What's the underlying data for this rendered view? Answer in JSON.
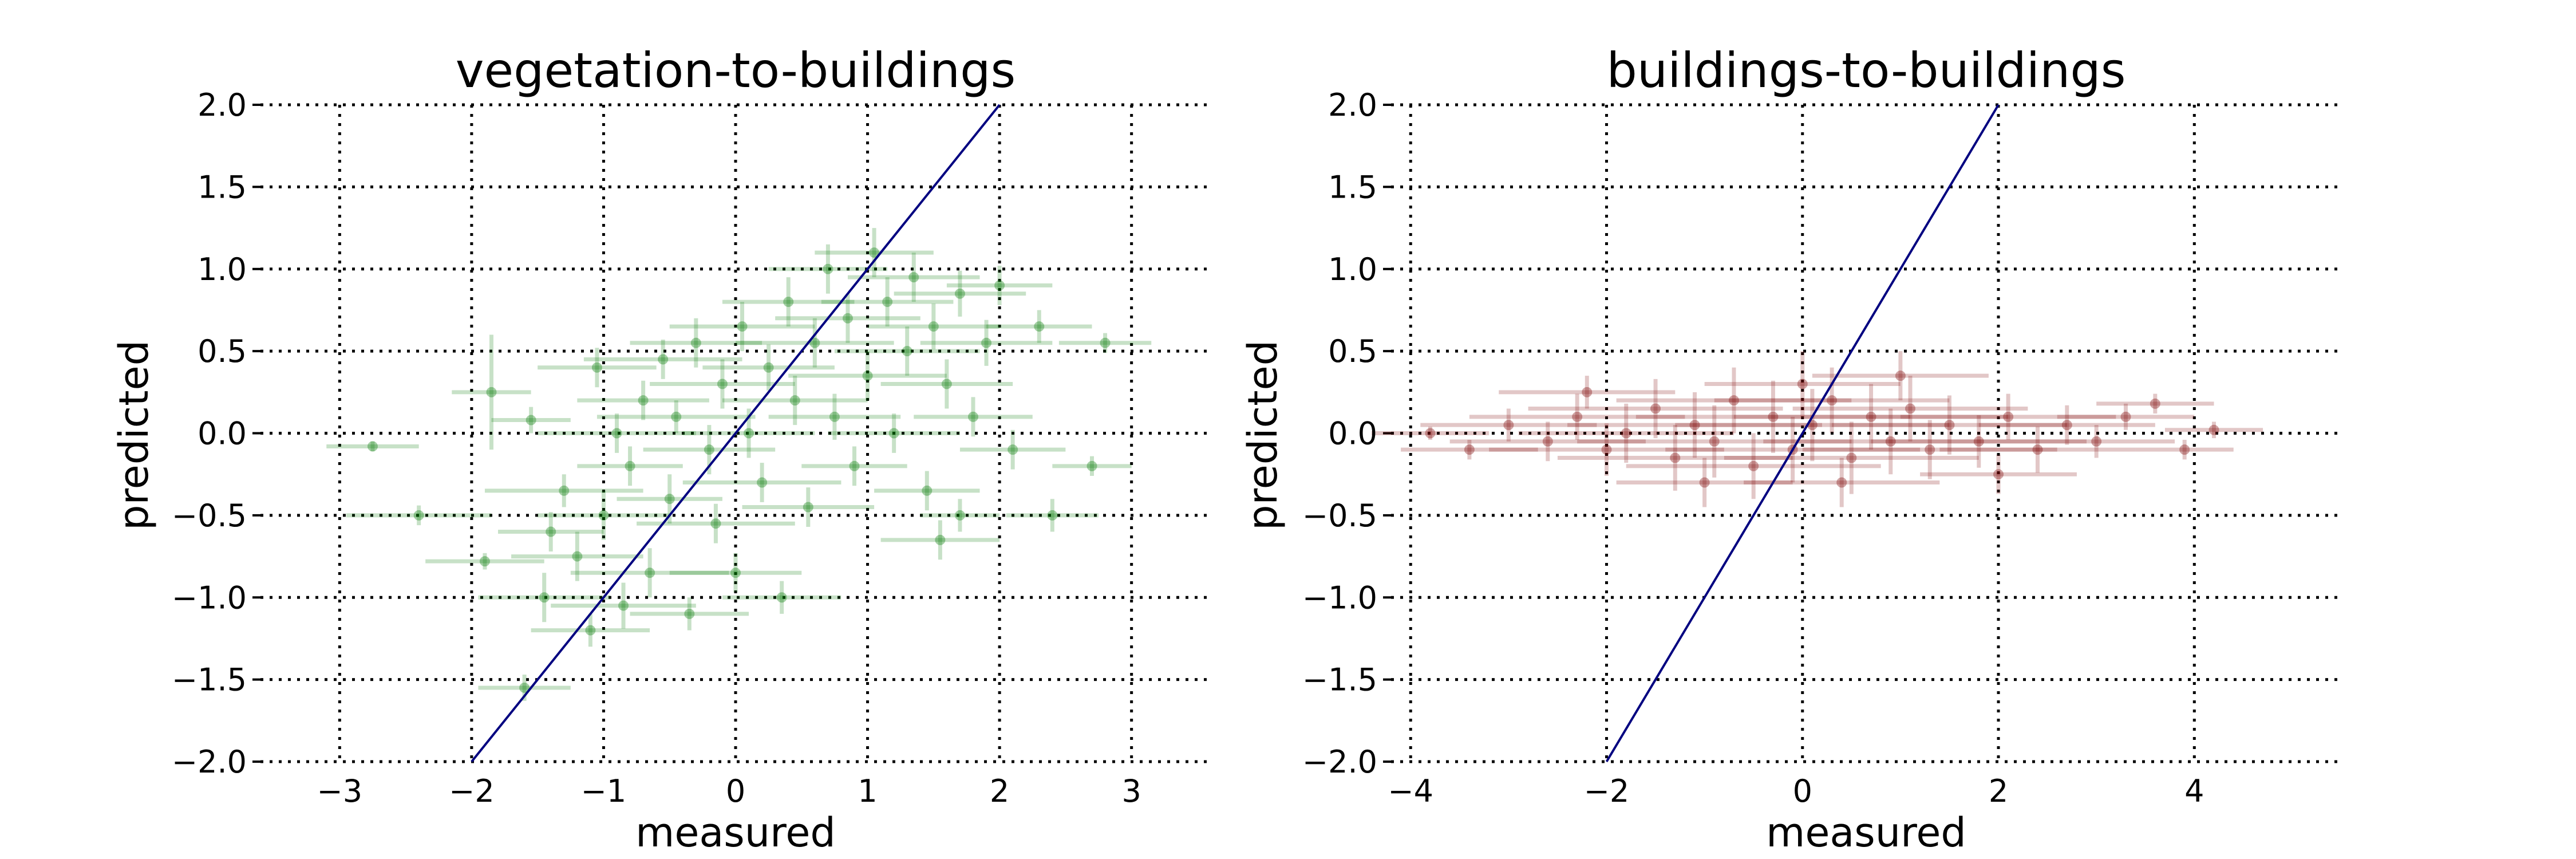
{
  "chart_data": [
    {
      "type": "scatter",
      "title": "vegetation-to-buildings",
      "xlabel": "measured",
      "ylabel": "predicted",
      "xlim": [
        -3.6,
        3.6
      ],
      "ylim": [
        -2.0,
        2.0
      ],
      "xticks": [
        -3,
        -2,
        -1,
        0,
        1,
        2,
        3
      ],
      "yticks": [
        -2.0,
        -1.5,
        -1.0,
        -0.5,
        0.0,
        0.5,
        1.0,
        1.5,
        2.0
      ],
      "xtick_labels": [
        "−3",
        "−2",
        "−1",
        "0",
        "1",
        "2",
        "3"
      ],
      "ytick_labels": [
        "−2.0",
        "−1.5",
        "−1.0",
        "−0.5",
        "0.0",
        "0.5",
        "1.0",
        "1.5",
        "2.0"
      ],
      "grid": true,
      "point_color": "#007700",
      "reference_line": {
        "x": [
          -2,
          2
        ],
        "y": [
          -2,
          2
        ],
        "color": "#000080"
      },
      "points": [
        [
          -2.75,
          -0.08,
          0.35,
          0.03
        ],
        [
          -2.4,
          -0.5,
          0.55,
          0.06
        ],
        [
          -1.9,
          -0.78,
          0.45,
          0.05
        ],
        [
          -1.85,
          0.25,
          0.3,
          0.35
        ],
        [
          -1.6,
          -1.55,
          0.35,
          0.08
        ],
        [
          -1.55,
          0.08,
          0.3,
          0.08
        ],
        [
          -1.45,
          -1.0,
          0.5,
          0.15
        ],
        [
          -1.4,
          -0.6,
          0.4,
          0.12
        ],
        [
          -1.3,
          -0.35,
          0.6,
          0.1
        ],
        [
          -1.2,
          -0.75,
          0.5,
          0.15
        ],
        [
          -1.1,
          -1.2,
          0.45,
          0.1
        ],
        [
          -1.05,
          0.4,
          0.45,
          0.12
        ],
        [
          -1.0,
          -0.5,
          0.5,
          0.15
        ],
        [
          -0.9,
          0.0,
          0.6,
          0.12
        ],
        [
          -0.85,
          -1.05,
          0.55,
          0.14
        ],
        [
          -0.8,
          -0.2,
          0.4,
          0.12
        ],
        [
          -0.7,
          0.2,
          0.5,
          0.12
        ],
        [
          -0.65,
          -0.85,
          0.6,
          0.15
        ],
        [
          -0.55,
          0.45,
          0.6,
          0.12
        ],
        [
          -0.5,
          -0.4,
          0.4,
          0.15
        ],
        [
          -0.45,
          0.1,
          0.6,
          0.1
        ],
        [
          -0.35,
          -1.1,
          0.45,
          0.1
        ],
        [
          -0.3,
          0.55,
          0.5,
          0.15
        ],
        [
          -0.2,
          -0.1,
          0.5,
          0.15
        ],
        [
          -0.15,
          -0.55,
          0.6,
          0.12
        ],
        [
          -0.1,
          0.3,
          0.55,
          0.15
        ],
        [
          0.0,
          -0.85,
          0.5,
          0.12
        ],
        [
          0.05,
          0.65,
          0.55,
          0.15
        ],
        [
          0.1,
          0.0,
          0.5,
          0.15
        ],
        [
          0.2,
          -0.3,
          0.6,
          0.12
        ],
        [
          0.25,
          0.4,
          0.5,
          0.14
        ],
        [
          0.35,
          -1.0,
          0.45,
          0.1
        ],
        [
          0.4,
          0.8,
          0.5,
          0.15
        ],
        [
          0.45,
          0.2,
          0.55,
          0.15
        ],
        [
          0.55,
          -0.45,
          0.5,
          0.12
        ],
        [
          0.6,
          0.55,
          0.6,
          0.15
        ],
        [
          0.7,
          1.0,
          0.45,
          0.15
        ],
        [
          0.75,
          0.1,
          0.5,
          0.14
        ],
        [
          0.85,
          0.7,
          0.55,
          0.15
        ],
        [
          0.9,
          -0.2,
          0.4,
          0.12
        ],
        [
          1.0,
          0.35,
          0.6,
          0.15
        ],
        [
          1.05,
          1.1,
          0.45,
          0.15
        ],
        [
          1.15,
          0.8,
          0.5,
          0.15
        ],
        [
          1.2,
          0.0,
          0.5,
          0.12
        ],
        [
          1.3,
          0.5,
          0.55,
          0.15
        ],
        [
          1.35,
          0.95,
          0.5,
          0.15
        ],
        [
          1.45,
          -0.35,
          0.4,
          0.12
        ],
        [
          1.5,
          0.65,
          0.5,
          0.14
        ],
        [
          1.55,
          -0.65,
          0.45,
          0.12
        ],
        [
          1.6,
          0.3,
          0.5,
          0.15
        ],
        [
          1.7,
          0.85,
          0.5,
          0.14
        ],
        [
          1.8,
          0.1,
          0.45,
          0.12
        ],
        [
          1.9,
          0.55,
          0.5,
          0.14
        ],
        [
          2.0,
          0.9,
          0.4,
          0.12
        ],
        [
          2.1,
          -0.1,
          0.4,
          0.12
        ],
        [
          2.3,
          0.65,
          0.4,
          0.1
        ],
        [
          2.4,
          -0.5,
          0.35,
          0.1
        ],
        [
          2.7,
          -0.2,
          0.3,
          0.06
        ],
        [
          2.8,
          0.55,
          0.35,
          0.06
        ],
        [
          1.7,
          -0.5,
          0.3,
          0.1
        ]
      ]
    },
    {
      "type": "scatter",
      "title": "buildings-to-buildings",
      "xlabel": "measured",
      "ylabel": "predicted",
      "xlim": [
        -4.2,
        5.5
      ],
      "ylim": [
        -2.0,
        2.0
      ],
      "xticks": [
        -4,
        -2,
        0,
        2,
        4
      ],
      "yticks": [
        -2.0,
        -1.5,
        -1.0,
        -0.5,
        0.0,
        0.5,
        1.0,
        1.5,
        2.0
      ],
      "xtick_labels": [
        "−4",
        "−2",
        "0",
        "2",
        "4"
      ],
      "ytick_labels": [
        "−2.0",
        "−1.5",
        "−1.0",
        "−0.5",
        "0.0",
        "0.5",
        "1.0",
        "1.5",
        "2.0"
      ],
      "grid": true,
      "point_color": "#7a0000",
      "reference_line": {
        "x": [
          -2,
          2
        ],
        "y": [
          -2,
          2
        ],
        "color": "#000080"
      },
      "points": [
        [
          -3.8,
          0.0,
          0.6,
          0.04
        ],
        [
          -3.4,
          -0.1,
          0.7,
          0.06
        ],
        [
          -3.0,
          0.05,
          0.9,
          0.1
        ],
        [
          -2.6,
          -0.05,
          1.0,
          0.12
        ],
        [
          -2.3,
          0.1,
          1.1,
          0.14
        ],
        [
          -2.0,
          -0.1,
          1.2,
          0.16
        ],
        [
          -1.8,
          0.0,
          1.1,
          0.18
        ],
        [
          -1.5,
          0.15,
          1.3,
          0.18
        ],
        [
          -1.3,
          -0.15,
          1.2,
          0.2
        ],
        [
          -1.1,
          0.05,
          1.3,
          0.2
        ],
        [
          -0.9,
          -0.05,
          1.4,
          0.22
        ],
        [
          -0.7,
          0.2,
          1.2,
          0.2
        ],
        [
          -0.5,
          -0.2,
          1.3,
          0.2
        ],
        [
          -0.3,
          0.1,
          1.4,
          0.22
        ],
        [
          -0.1,
          -0.1,
          1.3,
          0.2
        ],
        [
          0.1,
          0.05,
          1.4,
          0.22
        ],
        [
          0.3,
          0.2,
          1.2,
          0.2
        ],
        [
          0.5,
          -0.15,
          1.3,
          0.22
        ],
        [
          0.7,
          0.1,
          1.4,
          0.2
        ],
        [
          0.9,
          -0.05,
          1.3,
          0.2
        ],
        [
          1.1,
          0.15,
          1.2,
          0.2
        ],
        [
          1.3,
          -0.1,
          1.3,
          0.18
        ],
        [
          1.5,
          0.05,
          1.2,
          0.18
        ],
        [
          1.8,
          -0.05,
          1.1,
          0.16
        ],
        [
          2.1,
          0.1,
          1.1,
          0.14
        ],
        [
          2.4,
          -0.1,
          1.0,
          0.14
        ],
        [
          2.7,
          0.05,
          0.9,
          0.12
        ],
        [
          3.0,
          -0.05,
          0.8,
          0.1
        ],
        [
          3.3,
          0.1,
          0.7,
          0.08
        ],
        [
          3.6,
          0.18,
          0.6,
          0.06
        ],
        [
          3.9,
          -0.1,
          0.5,
          0.06
        ],
        [
          4.2,
          0.02,
          0.5,
          0.05
        ],
        [
          -2.2,
          0.25,
          0.9,
          0.1
        ],
        [
          0.0,
          0.3,
          1.0,
          0.2
        ],
        [
          1.0,
          0.35,
          0.9,
          0.15
        ],
        [
          -1.0,
          -0.3,
          0.9,
          0.15
        ],
        [
          2.0,
          -0.25,
          0.8,
          0.12
        ],
        [
          0.4,
          -0.3,
          1.0,
          0.15
        ]
      ]
    }
  ]
}
